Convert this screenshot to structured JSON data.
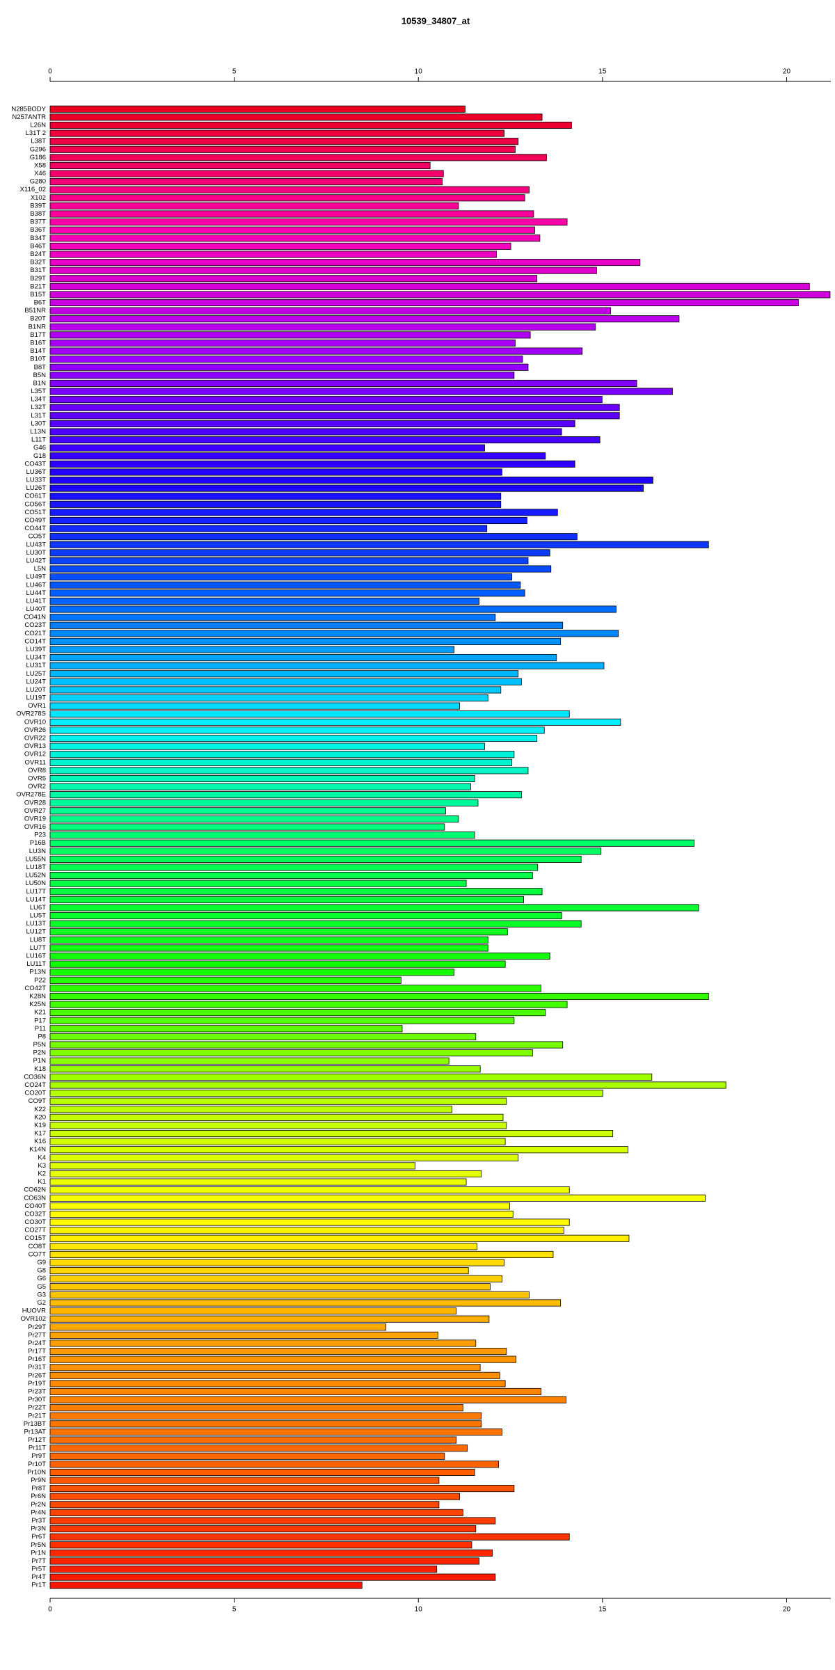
{
  "chart_data": {
    "type": "bar",
    "orientation": "horizontal",
    "title": "10539_34807_at",
    "categories": [
      "N285BODY",
      "N257ANTR",
      "L26N",
      "L31T 2",
      "L38T",
      "G296",
      "G186",
      "X58",
      "X46",
      "G280",
      "X116_02",
      "X102",
      "B39T",
      "B38T",
      "B37T",
      "B36T",
      "B34T",
      "B46T",
      "B24T",
      "B32T",
      "B31T",
      "B29T",
      "B21T",
      "B15T",
      "B6T",
      "B51NR",
      "B20T",
      "B1NR",
      "B17T",
      "B16T",
      "B14T",
      "B10T",
      "B8T",
      "B5N",
      "B1N",
      "L35T",
      "L34T",
      "L32T",
      "L31T",
      "L30T",
      "L13N",
      "L11T",
      "G46",
      "G18",
      "CO43T",
      "LU36T",
      "LU33T",
      "LU26T",
      "CO61T",
      "CO56T",
      "CO51T",
      "CO49T",
      "CO44T",
      "CO5T",
      "LU43T",
      "LU30T",
      "LU42T",
      "L5N",
      "LU49T",
      "LU46T",
      "LU44T",
      "LU41T",
      "LU40T",
      "CO41N",
      "CO23T",
      "CO21T",
      "CO14T",
      "LU39T",
      "LU34T",
      "LU31T",
      "LU25T",
      "LU24T",
      "LU20T",
      "LU19T",
      "OVR1",
      "OVR278S",
      "OVR10",
      "OVR26",
      "OVR22",
      "OVR13",
      "OVR12",
      "OVR11",
      "OVR8",
      "OVR5",
      "OVR2",
      "OVR278E",
      "OVR28",
      "OVR27",
      "OVR19",
      "OVR16",
      "P23",
      "P16B",
      "LU3N",
      "LU55N",
      "LU18T",
      "LU52N",
      "LU50N",
      "LU17T",
      "LU14T",
      "LU6T",
      "LU5T",
      "LU13T",
      "LU12T",
      "LU8T",
      "LU7T",
      "LU16T",
      "LU11T",
      "P13N",
      "P22",
      "CO42T",
      "K28N",
      "K25N",
      "K21",
      "P17",
      "P11",
      "P8",
      "P5N",
      "P2N",
      "P1N",
      "K18",
      "CO36N",
      "CO24T",
      "CO20T",
      "CO9T",
      "K22",
      "K20",
      "K19",
      "K17",
      "K16",
      "K14N",
      "K4",
      "K3",
      "K2",
      "K1",
      "CO62N",
      "CO63N",
      "CO40T",
      "CO32T",
      "CO30T",
      "CO27T",
      "CO15T",
      "CO8T",
      "CO7T",
      "G9",
      "G8",
      "G6",
      "G5",
      "G3",
      "G2",
      "HUOVR",
      "OVR102",
      "Pr29T",
      "Pr27T",
      "Pr24T",
      "Pr17T",
      "Pr16T",
      "Pr31T",
      "Pr26T",
      "Pr19T",
      "Pr23T",
      "Pr30T",
      "Pr22T",
      "Pr21T",
      "Pr13BT",
      "Pr13AT",
      "Pr12T",
      "Pr11T",
      "Pr9T",
      "Pr10T",
      "Pr10N",
      "Pr9N",
      "Pr8T",
      "Pr6N",
      "Pr2N",
      "Pr4N",
      "Pr3T",
      "Pr3N",
      "Pr6T",
      "Pr5N",
      "Pr1N",
      "Pr7T",
      "Pr5T",
      "Pr4T",
      "Pr1T"
    ],
    "values": [
      11.27,
      13.36,
      14.16,
      12.33,
      12.71,
      12.63,
      13.48,
      10.32,
      10.68,
      10.65,
      13.01,
      12.89,
      11.09,
      13.13,
      14.04,
      13.16,
      13.3,
      12.51,
      12.12,
      16.02,
      14.84,
      13.22,
      20.62,
      21.18,
      20.32,
      15.22,
      17.08,
      14.81,
      13.04,
      12.63,
      14.45,
      12.83,
      12.98,
      12.6,
      15.93,
      16.9,
      14.99,
      15.46,
      15.46,
      14.25,
      13.89,
      14.93,
      11.8,
      13.45,
      14.25,
      12.27,
      16.37,
      16.11,
      12.24,
      12.24,
      13.78,
      12.95,
      11.86,
      14.31,
      17.88,
      13.57,
      12.98,
      13.6,
      12.54,
      12.77,
      12.89,
      11.65,
      15.37,
      12.09,
      13.92,
      15.43,
      13.86,
      10.97,
      13.75,
      15.04,
      12.71,
      12.8,
      12.24,
      11.89,
      11.12,
      14.1,
      15.49,
      13.42,
      13.22,
      11.8,
      12.6,
      12.54,
      12.98,
      11.53,
      11.42,
      12.8,
      11.62,
      10.74,
      11.09,
      10.71,
      11.53,
      17.49,
      14.96,
      14.42,
      13.24,
      13.1,
      11.3,
      13.36,
      12.86,
      17.61,
      13.89,
      14.42,
      12.42,
      11.89,
      11.89,
      13.57,
      12.36,
      10.97,
      9.53,
      13.33,
      17.88,
      14.04,
      13.45,
      12.6,
      9.56,
      11.56,
      13.92,
      13.1,
      10.83,
      11.68,
      16.34,
      18.35,
      15.01,
      12.39,
      10.91,
      12.3,
      12.39,
      15.28,
      12.36,
      15.69,
      12.71,
      9.91,
      11.71,
      11.3,
      14.1,
      17.79,
      12.48,
      12.57,
      14.1,
      13.95,
      15.72,
      11.59,
      13.66,
      12.33,
      11.36,
      12.27,
      11.95,
      13.01,
      13.86,
      11.03,
      11.92,
      9.12,
      10.53,
      11.56,
      12.39,
      12.65,
      11.68,
      12.21,
      12.36,
      13.33,
      14.01,
      11.21,
      11.71,
      11.71,
      12.27,
      11.03,
      11.33,
      10.71,
      12.18,
      11.53,
      10.56,
      12.6,
      11.12,
      10.56,
      11.21,
      12.09,
      11.56,
      14.1,
      11.45,
      12.01,
      11.65,
      10.5,
      12.09,
      8.47
    ],
    "colors": [
      "#e8001e",
      "#ff00b4",
      "#a000ff",
      "#1e00ff",
      "#0064ff",
      "#00f0ff",
      "#00ff64",
      "#14ff00",
      "#b4ff00",
      "#ffff00",
      "#ffa000",
      "#ff6400",
      "#ff1400"
    ],
    "xlim": [
      0,
      21.2
    ],
    "xticks": [
      0,
      5,
      10,
      15,
      20
    ]
  }
}
